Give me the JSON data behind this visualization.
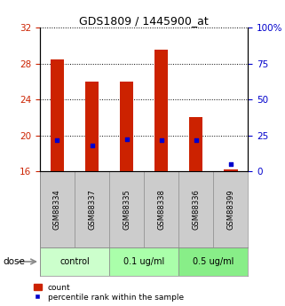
{
  "title": "GDS1809 / 1445900_at",
  "samples": [
    "GSM88334",
    "GSM88337",
    "GSM88335",
    "GSM88338",
    "GSM88336",
    "GSM88399"
  ],
  "count_values": [
    28.5,
    26.0,
    26.0,
    29.5,
    22.0,
    16.2
  ],
  "percentile_values": [
    22.0,
    18.0,
    22.5,
    22.0,
    22.0,
    5.0
  ],
  "ylim_left": [
    16,
    32
  ],
  "ylim_right": [
    0,
    100
  ],
  "yticks_left": [
    16,
    20,
    24,
    28,
    32
  ],
  "yticks_right": [
    0,
    25,
    50,
    75,
    100
  ],
  "ytick_labels_right": [
    "0",
    "25",
    "50",
    "75",
    "100%"
  ],
  "bar_color": "#cc2200",
  "dot_color": "#0000cc",
  "bar_width": 0.4,
  "groups": [
    {
      "label": "control",
      "start": 0,
      "end": 2,
      "color": "#ccffcc"
    },
    {
      "label": "0.1 ug/ml",
      "start": 2,
      "end": 4,
      "color": "#aaffaa"
    },
    {
      "label": "0.5 ug/ml",
      "start": 4,
      "end": 6,
      "color": "#88ee88"
    }
  ],
  "dose_label": "dose",
  "legend_count_label": "count",
  "legend_percentile_label": "percentile rank within the sample",
  "left_axis_color": "#cc2200",
  "right_axis_color": "#0000cc",
  "grid_color": "#000000",
  "background_color": "#ffffff",
  "sample_box_color": "#cccccc",
  "figsize": [
    3.21,
    3.45
  ],
  "dpi": 100
}
